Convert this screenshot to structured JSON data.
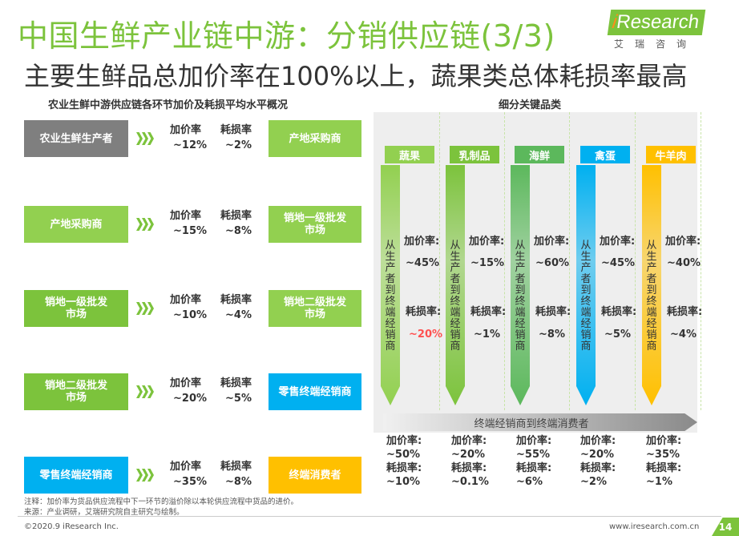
{
  "title": "中国生鲜产业链中游：分销供应链(3/3)",
  "subtitle": "主要生鲜品总加价率在100%以上，蔬果类总体耗损率最高",
  "logo": {
    "brand_i": "i",
    "brand_rest": "Research",
    "cn": "艾瑞咨询"
  },
  "left_section": {
    "heading": "农业生鲜中游供应链各环节加价及耗损平均水平概况",
    "markup_label": "加价率",
    "loss_label": "耗损率",
    "rows": [
      {
        "from": "农业生鲜生产者",
        "markup": "~12%",
        "loss": "~2%",
        "to": "产地采购商"
      },
      {
        "from": "产地采购商",
        "markup": "~15%",
        "loss": "~8%",
        "to": "销地一级批发市场"
      },
      {
        "from": "销地一级批发市场",
        "markup": "~10%",
        "loss": "~4%",
        "to": "销地二级批发市场"
      },
      {
        "from": "销地二级批发市场",
        "markup": "~20%",
        "loss": "~5%",
        "to": "零售终端经销商"
      },
      {
        "from": "零售终端经销商",
        "markup": "~35%",
        "loss": "~8%",
        "to": "终端消费者"
      }
    ]
  },
  "right_section": {
    "heading": "细分关键品类",
    "vertical_text": "从生产者到终端经销商",
    "markup_label": "加价率:",
    "loss_label": "耗损率:",
    "bottom_arrow": "终端经销商到终端消费者",
    "bottom_markup_label": "加价率:",
    "bottom_loss_label": "耗损率:",
    "categories": [
      {
        "name": "蔬果",
        "markup": "~45%",
        "loss": "~20%",
        "bottom_markup": "~50%",
        "bottom_loss": "~10%",
        "color": "#92d050",
        "loss_color": "#ff5050"
      },
      {
        "name": "乳制品",
        "markup": "~15%",
        "loss": "~1%",
        "bottom_markup": "~20%",
        "bottom_loss": "~0.1%",
        "color": "#7cc33c",
        "loss_color": "#333333"
      },
      {
        "name": "海鲜",
        "markup": "~60%",
        "loss": "~8%",
        "bottom_markup": "~55%",
        "bottom_loss": "~6%",
        "color": "#5cb85c",
        "loss_color": "#333333"
      },
      {
        "name": "禽蛋",
        "markup": "~45%",
        "loss": "~5%",
        "bottom_markup": "~20%",
        "bottom_loss": "~2%",
        "color": "#00b0f0",
        "loss_color": "#333333"
      },
      {
        "name": "牛羊肉",
        "markup": "~40%",
        "loss": "~4%",
        "bottom_markup": "~35%",
        "bottom_loss": "~1%",
        "color": "#ffc000",
        "loss_color": "#333333"
      }
    ]
  },
  "notes": {
    "note": "注释：加价率为货品供应流程中下一环节的溢价除以本轮供应流程中货品的进价。",
    "source": "来源：产业调研，艾瑞研究院自主研究与绘制。"
  },
  "footer": {
    "copyright": "©2020.9 iResearch Inc.",
    "url": "www.iresearch.com.cn",
    "page": "14"
  }
}
